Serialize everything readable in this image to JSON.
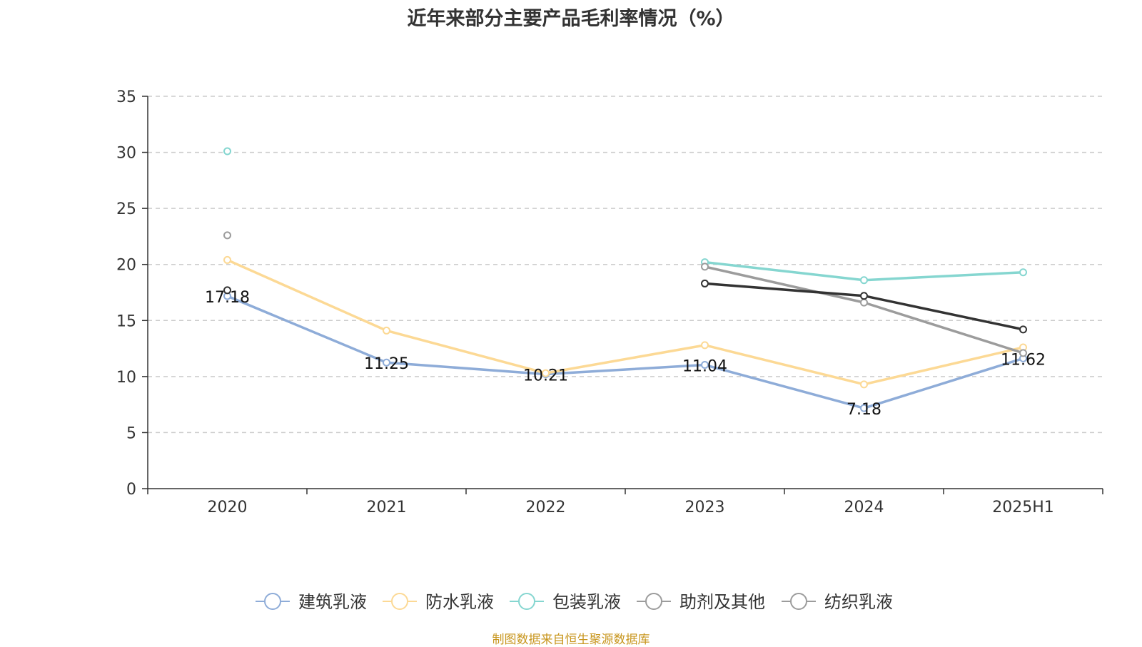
{
  "chart_data": {
    "type": "line",
    "title": "近年来部分主要产品毛利率情况（%）",
    "categories": [
      "2020",
      "2021",
      "2022",
      "2023",
      "2024",
      "2025H1"
    ],
    "ylim": [
      0,
      35
    ],
    "yticks": [
      0,
      5,
      10,
      15,
      20,
      25,
      30,
      35
    ],
    "grid": true,
    "legend_position": "bottom",
    "series": [
      {
        "name": "建筑乳液",
        "color": "#8eacd8",
        "values": [
          17.18,
          11.25,
          10.21,
          11.04,
          7.18,
          11.62
        ],
        "labels": [
          "17.18",
          "11.25",
          "10.21",
          "11.04",
          "7.18",
          "11.62"
        ]
      },
      {
        "name": "防水乳液",
        "color": "#fcd995",
        "values": [
          20.4,
          14.1,
          10.3,
          12.8,
          9.3,
          12.6
        ]
      },
      {
        "name": "包装乳液",
        "color": "#85d6d0",
        "values": [
          30.1,
          null,
          null,
          20.2,
          18.6,
          19.3
        ]
      },
      {
        "name": "助剂及其他",
        "color": "#9c9c9c",
        "values": [
          22.6,
          null,
          null,
          19.8,
          16.6,
          12.1
        ]
      },
      {
        "name": "纺织乳液",
        "color": "#333333",
        "legend_color": "#9c9c9c",
        "values": [
          17.7,
          null,
          null,
          18.3,
          17.2,
          14.2
        ]
      }
    ]
  },
  "source": "制图数据来自恒生聚源数据库"
}
